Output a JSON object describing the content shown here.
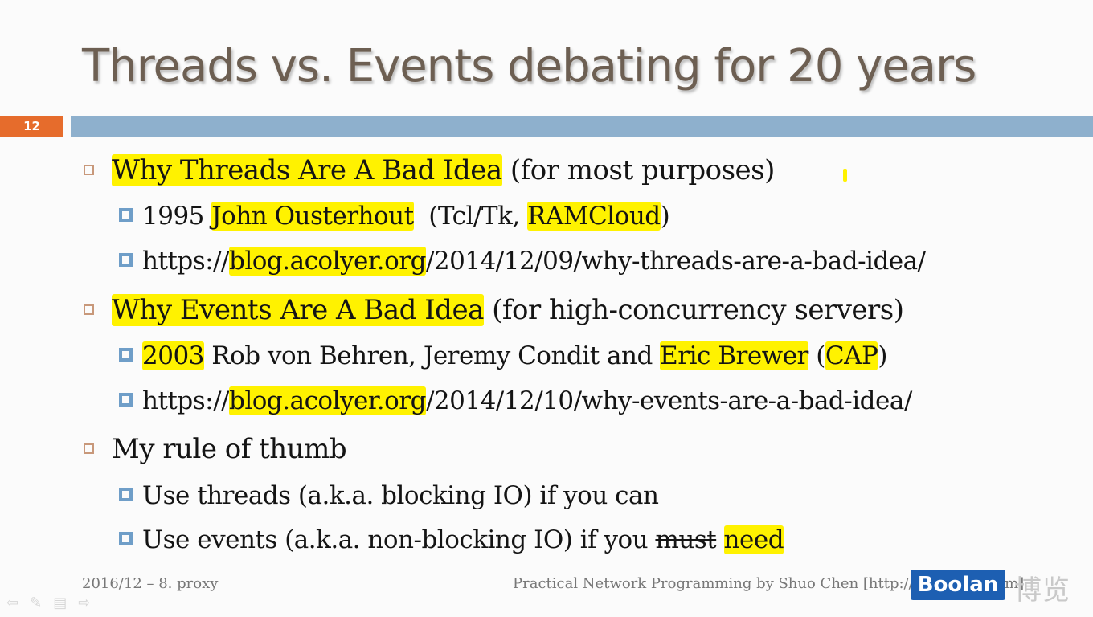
{
  "slide": {
    "title": "Threads vs. Events debating for 20 years",
    "number": "12",
    "items": [
      {
        "text_hl": "Why Threads Are A Bad Idea",
        "text_rest": " (for most purposes)",
        "sub": [
          {
            "a": "1995 ",
            "b": "John Ousterhout",
            "c": "  (Tcl/Tk, ",
            "d": "RAMCloud",
            "e": ")"
          },
          {
            "a": "https://",
            "b": "blog.acolyer.org",
            "c": "/2014/12/09/why-threads-are-a-bad-idea/"
          }
        ]
      },
      {
        "text_hl": "Why Events Are A Bad Idea",
        "text_rest": " (for high-concurrency servers)",
        "sub": [
          {
            "a": "2003",
            "b": " Rob von Behren, Jeremy Condit and ",
            "c": "Eric Brewer",
            "d": " (",
            "e": "CAP",
            "f": ")"
          },
          {
            "a": "https://",
            "b": "blog.acolyer.org",
            "c": "/2014/12/10/why-events-are-a-bad-idea/"
          }
        ]
      },
      {
        "text": "My rule of thumb",
        "sub": [
          {
            "a": "Use threads (a.k.a. blocking IO) if you can"
          },
          {
            "a": "Use events (a.k.a. non-blocking IO) if you ",
            "b": "must",
            "c": " ",
            "d": "need"
          }
        ]
      }
    ]
  },
  "footer": {
    "left": "2016/12 – 8. proxy",
    "right": "Practical Network Programming by Shuo Chen [http://chenshuo.com]"
  },
  "watermark": {
    "logo": "Boolan",
    "cn": "博览"
  },
  "nav_icons": [
    "arrow-left-icon",
    "pen-icon",
    "menu-icon",
    "arrow-right-icon"
  ]
}
